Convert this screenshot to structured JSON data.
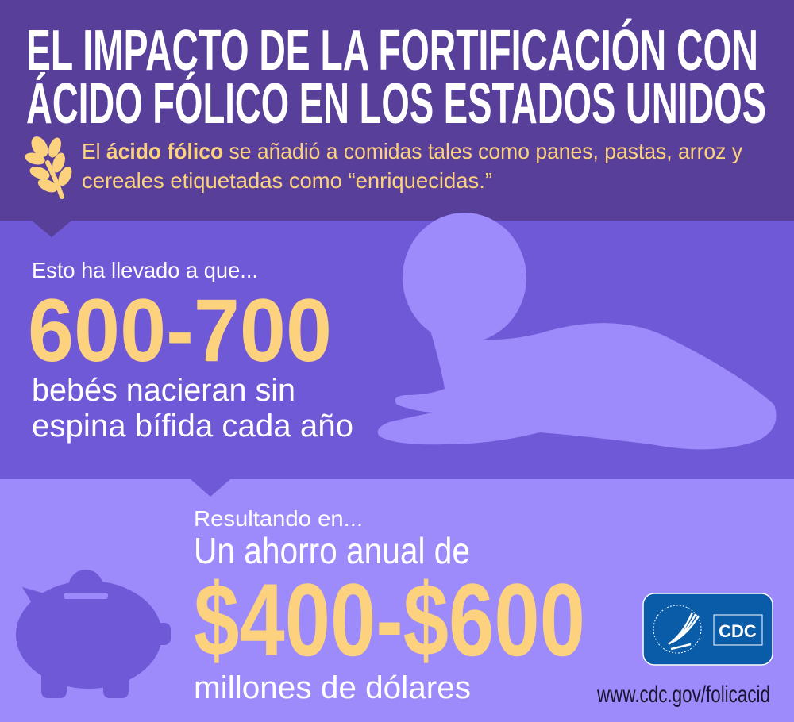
{
  "colors": {
    "top_band": "#58409a",
    "middle_band": "#7059d6",
    "bottom_band": "#9d8bfb",
    "accent_yellow": "#fdd27e",
    "cdc_blue": "#0a5ca8"
  },
  "header": {
    "title_line1": "EL IMPACTO DE LA FORTIFICACIÓN CON",
    "title_line2": "ÁCIDO FÓLICO EN LOS ESTADOS UNIDOS",
    "intro_prefix": "El ",
    "intro_bold": "ácido fólico",
    "intro_rest": " se añadió a comidas tales como panes, pastas, arroz y",
    "intro_line2": "cereales etiquetadas como “enriquecidas.”",
    "icon": "wheat-icon"
  },
  "births": {
    "lead": "Esto ha llevado a que...",
    "number": "600-700",
    "line1": "bebés nacieran sin",
    "line2": "espina bífida cada año",
    "icon": "baby-silhouette"
  },
  "savings": {
    "lead": "Resultando en...",
    "line1": "Un ahorro anual de",
    "amount": "$400-$600",
    "line2": "millones de dólares",
    "icon": "piggy-bank-icon"
  },
  "footer": {
    "logo_text": "CDC",
    "url": "www.cdc.gov/folicacid"
  }
}
